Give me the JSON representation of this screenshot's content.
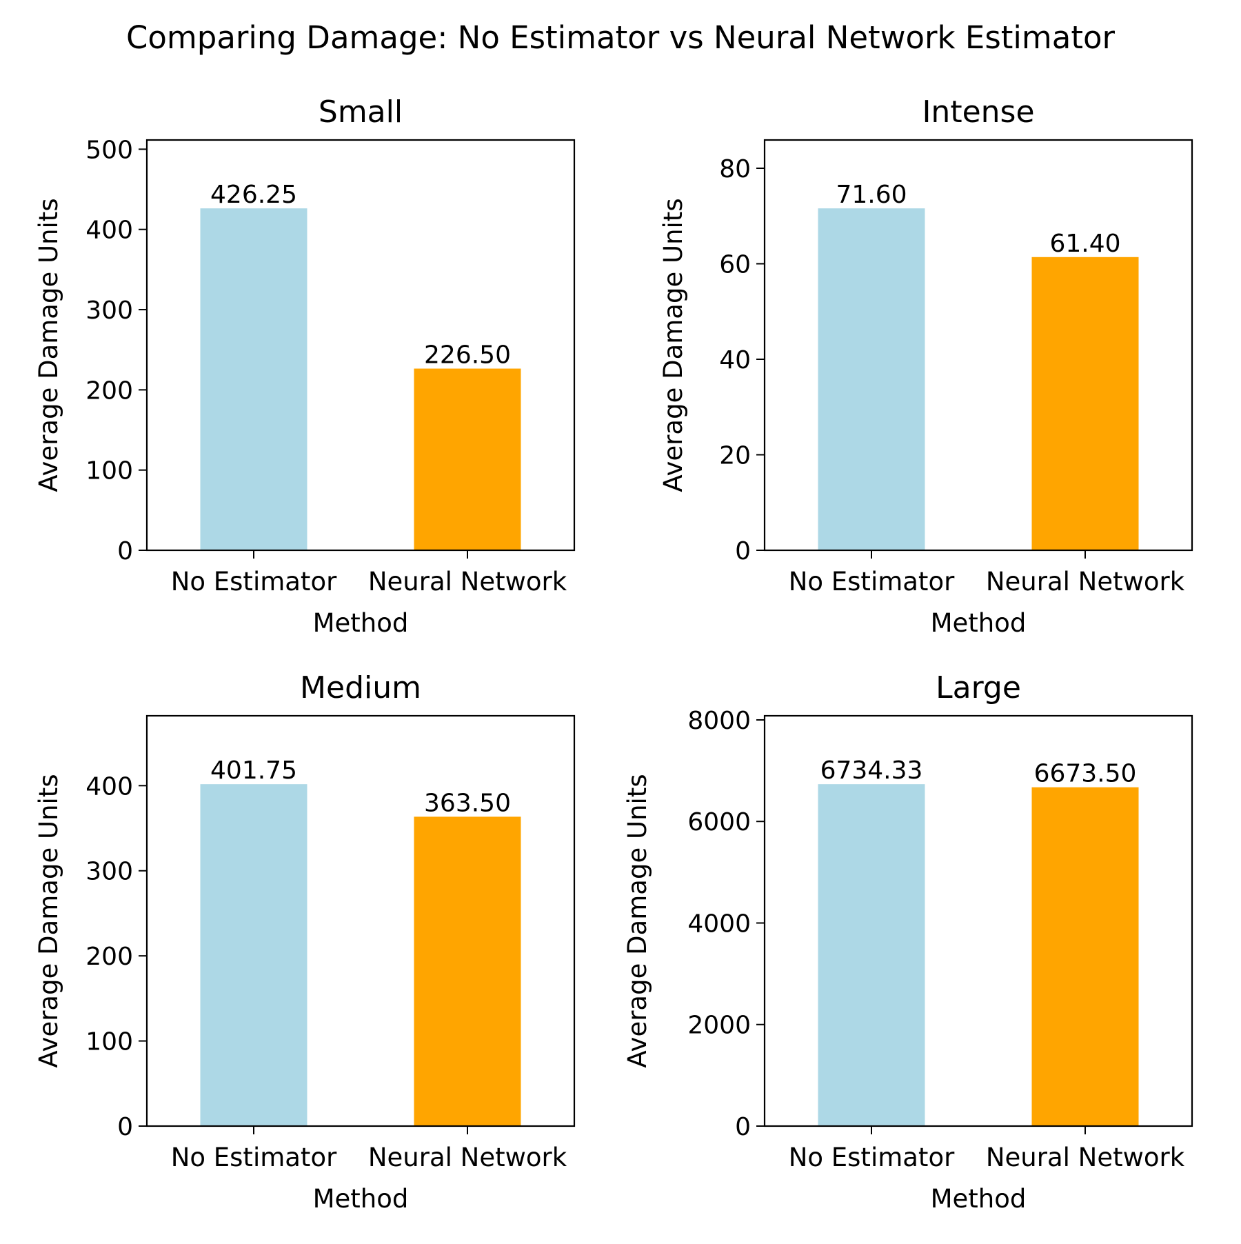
{
  "suptitle": "Comparing Damage: No Estimator vs Neural Network Estimator",
  "colors": {
    "no_estimator": "#add8e6",
    "neural_network": "#ffa500"
  },
  "chart_data": [
    {
      "type": "bar",
      "title": "Small",
      "xlabel": "Method",
      "ylabel": "Average Damage Units",
      "categories": [
        "No Estimator",
        "Neural Network"
      ],
      "values": [
        426.25,
        226.5
      ],
      "value_labels": [
        "426.25",
        "226.50"
      ],
      "ylim": [
        0,
        511.5
      ],
      "yticks": [
        0,
        100,
        200,
        300,
        400,
        500
      ],
      "grid": false
    },
    {
      "type": "bar",
      "title": "Intense",
      "xlabel": "Method",
      "ylabel": "Average Damage Units",
      "categories": [
        "No Estimator",
        "Neural Network"
      ],
      "values": [
        71.6,
        61.4
      ],
      "value_labels": [
        "71.60",
        "61.40"
      ],
      "ylim": [
        0,
        85.92
      ],
      "yticks": [
        0,
        20,
        40,
        60,
        80
      ],
      "grid": false
    },
    {
      "type": "bar",
      "title": "Medium",
      "xlabel": "Method",
      "ylabel": "Average Damage Units",
      "categories": [
        "No Estimator",
        "Neural Network"
      ],
      "values": [
        401.75,
        363.5
      ],
      "value_labels": [
        "401.75",
        "363.50"
      ],
      "ylim": [
        0,
        482.1
      ],
      "yticks": [
        0,
        100,
        200,
        300,
        400
      ],
      "grid": false
    },
    {
      "type": "bar",
      "title": "Large",
      "xlabel": "Method",
      "ylabel": "Average Damage Units",
      "categories": [
        "No Estimator",
        "Neural Network"
      ],
      "values": [
        6734.33,
        6673.5
      ],
      "value_labels": [
        "6734.33",
        "6673.50"
      ],
      "ylim": [
        0,
        8081.2
      ],
      "yticks": [
        0,
        2000,
        4000,
        6000,
        8000
      ],
      "grid": false
    }
  ]
}
